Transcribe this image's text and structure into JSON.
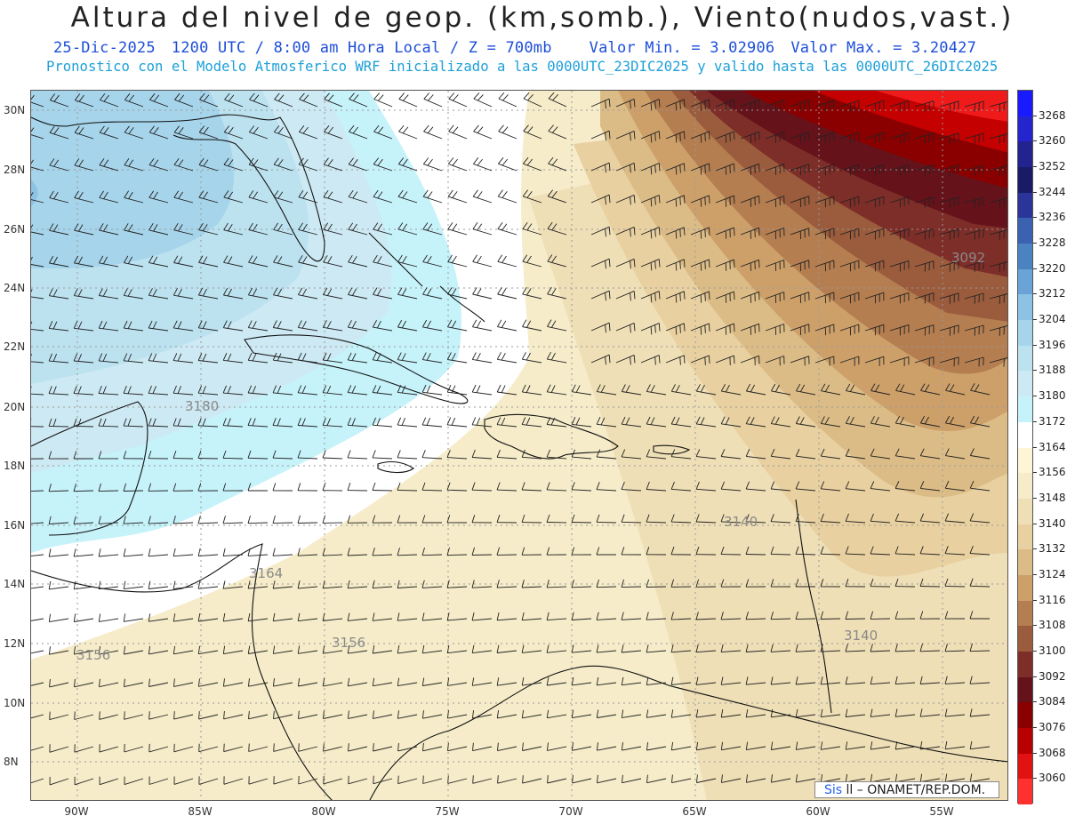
{
  "header": {
    "title": "Altura del nivel de geop. (km,somb.), Viento(nudos,vast.)",
    "date": "25-Dic-2025",
    "time": "1200 UTC / 8:00 am Hora Local / Z = 700mb",
    "min_value": "Valor Min. = 3.02906",
    "max_value": "Valor Max. = 3.20427",
    "model_info": "Pronostico con el Modelo Atmosferico WRF inicializado a las 0000UTC_23DIC2025 y valido hasta las  0000UTC_26DIC2025"
  },
  "axes": {
    "lat_labels": [
      "30N",
      "28N",
      "26N",
      "24N",
      "22N",
      "20N",
      "18N",
      "16N",
      "14N",
      "12N",
      "10N",
      "8N"
    ],
    "lon_labels": [
      "90W",
      "85W",
      "80W",
      "75W",
      "70W",
      "65W",
      "60W",
      "55W"
    ]
  },
  "contour_labels": [
    "3092",
    "3180",
    "3140",
    "3164",
    "3156",
    "3156",
    "3140"
  ],
  "colorbar": {
    "labels": [
      "3268",
      "3260",
      "3252",
      "3244",
      "3236",
      "3228",
      "3220",
      "3212",
      "3204",
      "3196",
      "3188",
      "3180",
      "3172",
      "3164",
      "3156",
      "3148",
      "3140",
      "3132",
      "3124",
      "3116",
      "3108",
      "3100",
      "3092",
      "3084",
      "3076",
      "3068",
      "3060"
    ],
    "colors": [
      "#1a1aff",
      "#2525d0",
      "#23238f",
      "#1a1a66",
      "#2a3499",
      "#3a62b0",
      "#4a82c2",
      "#6aa4d6",
      "#8cc2e4",
      "#a6d4ea",
      "#bce2f0",
      "#cde9f3",
      "#c6f2fa",
      "#ffffff",
      "#fdf5d6",
      "#f6ecc9",
      "#efdfb6",
      "#e8d0a0",
      "#dcbc86",
      "#cda06a",
      "#b47e50",
      "#9a5c3c",
      "#7e2e28",
      "#66121a",
      "#8a0000",
      "#b80000",
      "#e01212",
      "#ff3030"
    ]
  },
  "credit": {
    "sis": "Sis",
    "rest": " ONAMET/REP.DOM."
  }
}
